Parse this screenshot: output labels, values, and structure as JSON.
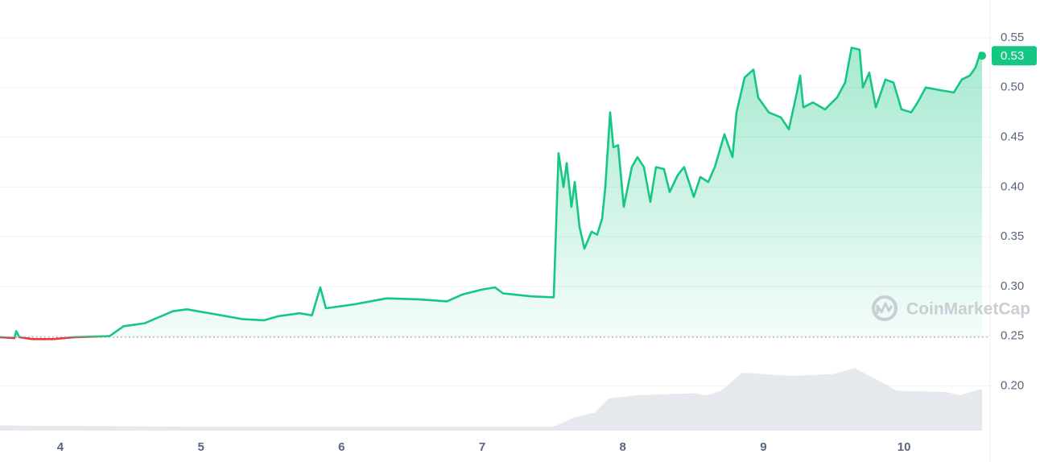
{
  "chart_data": {
    "type": "line",
    "x": [
      3.571,
      3.674,
      3.686,
      3.708,
      3.8,
      3.95,
      4.1,
      4.35,
      4.45,
      4.6,
      4.8,
      4.9,
      5.1,
      5.3,
      5.45,
      5.55,
      5.7,
      5.79,
      5.849,
      5.889,
      6.09,
      6.32,
      6.55,
      6.75,
      6.862,
      7.005,
      7.091,
      7.149,
      7.349,
      7.509,
      7.543,
      7.578,
      7.601,
      7.635,
      7.658,
      7.692,
      7.727,
      7.778,
      7.818,
      7.853,
      7.876,
      7.91,
      7.933,
      7.967,
      8.007,
      8.064,
      8.104,
      8.15,
      8.196,
      8.236,
      8.293,
      8.333,
      8.391,
      8.436,
      8.505,
      8.551,
      8.608,
      8.654,
      8.723,
      8.78,
      8.809,
      8.866,
      8.929,
      8.963,
      9.038,
      9.124,
      9.181,
      9.238,
      9.261,
      9.284,
      9.352,
      9.438,
      9.524,
      9.581,
      9.627,
      9.684,
      9.707,
      9.753,
      9.799,
      9.868,
      9.925,
      9.982,
      10.051,
      10.097,
      10.154,
      10.268,
      10.354,
      10.411,
      10.468,
      10.508,
      10.543,
      10.555
    ],
    "series": [
      {
        "color": "#16c784",
        "below_color": "#ea3943",
        "values": [
          0.249,
          0.248,
          0.255,
          0.249,
          0.247,
          0.247,
          0.249,
          0.25,
          0.26,
          0.263,
          0.275,
          0.277,
          0.272,
          0.267,
          0.266,
          0.27,
          0.273,
          0.271,
          0.299,
          0.278,
          0.282,
          0.288,
          0.287,
          0.285,
          0.292,
          0.297,
          0.299,
          0.293,
          0.29,
          0.289,
          0.434,
          0.4,
          0.424,
          0.38,
          0.405,
          0.36,
          0.338,
          0.355,
          0.352,
          0.368,
          0.4,
          0.475,
          0.44,
          0.442,
          0.38,
          0.42,
          0.43,
          0.42,
          0.385,
          0.42,
          0.418,
          0.395,
          0.412,
          0.42,
          0.39,
          0.41,
          0.405,
          0.42,
          0.453,
          0.43,
          0.475,
          0.51,
          0.518,
          0.49,
          0.475,
          0.47,
          0.458,
          0.495,
          0.512,
          0.48,
          0.485,
          0.478,
          0.49,
          0.505,
          0.54,
          0.538,
          0.5,
          0.515,
          0.48,
          0.508,
          0.505,
          0.478,
          0.475,
          0.485,
          0.5,
          0.497,
          0.495,
          0.508,
          0.512,
          0.52,
          0.535,
          0.532
        ]
      }
    ],
    "baseline": 0.249,
    "last_value_label": "0.53",
    "volume": {
      "color": "#dfe3ea",
      "x": [
        3.571,
        5.0,
        7.5,
        7.55,
        7.65,
        7.8,
        7.9,
        8.1,
        8.5,
        8.6,
        8.7,
        8.85,
        9.2,
        9.5,
        9.65,
        9.8,
        9.95,
        10.3,
        10.4,
        10.555
      ],
      "values": [
        8,
        6,
        6,
        10,
        20,
        28,
        50,
        55,
        58,
        55,
        62,
        90,
        85,
        88,
        97,
        80,
        62,
        60,
        55,
        65
      ],
      "lim": [
        0,
        100
      ]
    },
    "xlim": [
      3.571,
      10.612
    ],
    "xticks": [
      4,
      5,
      6,
      7,
      8,
      9,
      10
    ],
    "ylim": [
      0.155,
      0.588
    ],
    "yticks": [
      {
        "value": 0.2,
        "label": "0.20"
      },
      0.25,
      {
        "value": 0.3,
        "label": "0.30"
      },
      0.35,
      {
        "value": 0.4,
        "label": "0.40"
      },
      0.45,
      {
        "value": 0.5,
        "label": "0.50"
      },
      0.55
    ],
    "grid": true,
    "watermark": "CoinMarketCap"
  }
}
